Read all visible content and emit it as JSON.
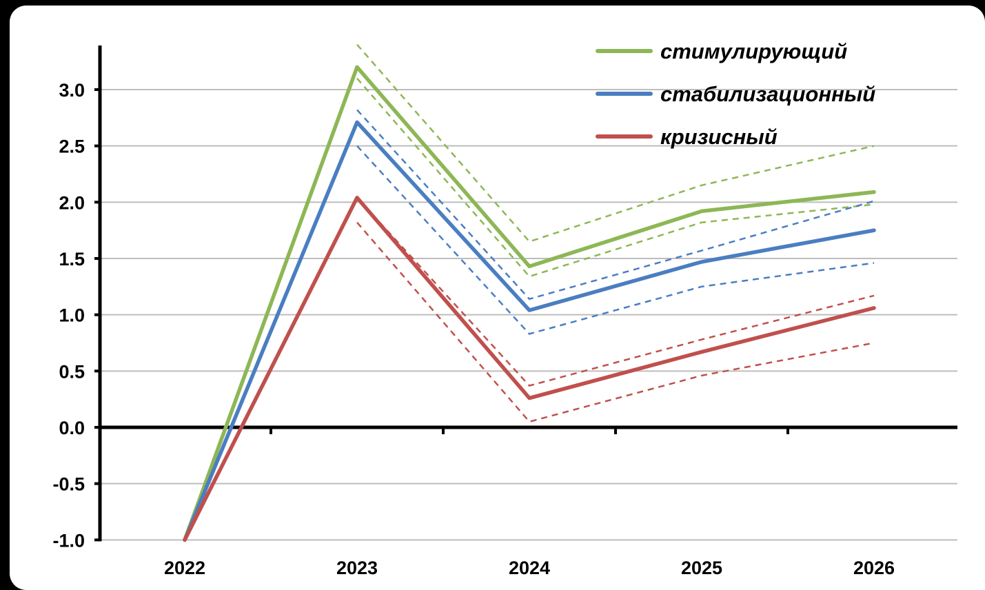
{
  "chart_data": {
    "type": "line",
    "title": "",
    "xlabel": "",
    "ylabel": "",
    "categories": [
      "2022",
      "2023",
      "2024",
      "2025",
      "2026"
    ],
    "ylim": [
      -1.0,
      3.3
    ],
    "yticks": [
      3.0,
      2.5,
      2.0,
      1.5,
      1.0,
      0.5,
      0.0,
      -0.5,
      -1.0
    ],
    "ytick_labels": [
      "3.0",
      "2.5",
      "2.0",
      "1.5",
      "1.0",
      "0.5",
      "0.0",
      "-0.5",
      "-1.0"
    ],
    "grid": true,
    "legend_position": "top-right",
    "series": [
      {
        "name": "стимулирующий",
        "color": "#8DB755",
        "values": [
          -1.0,
          3.2,
          1.43,
          1.92,
          2.09
        ],
        "upper": [
          null,
          3.4,
          1.65,
          2.15,
          2.5
        ],
        "lower": [
          null,
          3.1,
          1.34,
          1.82,
          1.98
        ]
      },
      {
        "name": "стабилизационный",
        "color": "#4A7EC1",
        "values": [
          -1.0,
          2.71,
          1.04,
          1.47,
          1.75
        ],
        "upper": [
          null,
          2.82,
          1.14,
          1.57,
          2.01
        ],
        "lower": [
          null,
          2.5,
          0.83,
          1.25,
          1.46
        ]
      },
      {
        "name": "кризисный",
        "color": "#C0504D",
        "values": [
          -1.0,
          2.04,
          0.26,
          0.67,
          1.06
        ],
        "upper": [
          null,
          2.04,
          0.37,
          0.78,
          1.17
        ],
        "lower": [
          null,
          1.82,
          0.05,
          0.46,
          0.75
        ]
      }
    ]
  }
}
